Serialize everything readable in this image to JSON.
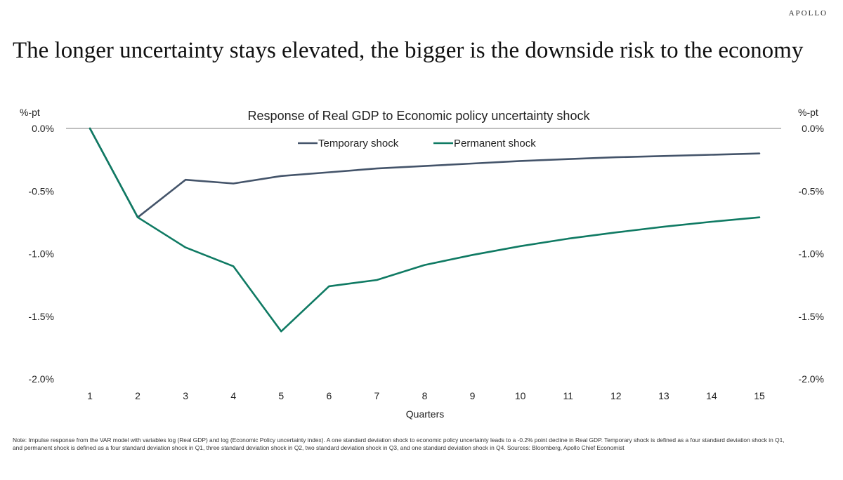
{
  "brand": "APOLLO",
  "headline": "The longer uncertainty stays elevated, the bigger is the downside risk to the economy",
  "note": "Note: Impulse response from the VAR model with variables log (Real GDP) and log (Economic Policy uncertainty index). A one standard deviation shock to economic policy uncertainty leads to a -0.2% point decline in Real GDP. Temporary shock is defined as a four standard deviation shock in Q1, and permanent shock is defined as a four standard deviation shock in Q1, three standard deviation shock in Q2, two standard deviation shock in Q3, and one standard deviation shock in Q4. Sources: Bloomberg, Apollo Chief Economist",
  "chart_data": {
    "type": "line",
    "title": "Response of Real GDP to Economic policy uncertainty shock",
    "xlabel": "Quarters",
    "ylabel_left": "%-pt",
    "ylabel_right": "%-pt",
    "ylim": [
      -2.0,
      0.0
    ],
    "yticks": [
      0.0,
      -0.5,
      -1.0,
      -1.5,
      -2.0
    ],
    "ytick_labels": [
      "0.0%",
      "-0.5%",
      "-1.0%",
      "-1.5%",
      "-2.0%"
    ],
    "x": [
      1,
      2,
      3,
      4,
      5,
      6,
      7,
      8,
      9,
      10,
      11,
      12,
      13,
      14,
      15
    ],
    "x_labels": [
      "1",
      "2",
      "3",
      "4",
      "5",
      "6",
      "7",
      "8",
      "9",
      "10",
      "11",
      "12",
      "13",
      "14",
      "15"
    ],
    "legend_position": "top-center",
    "grid": false,
    "series": [
      {
        "name": "Temporary shock",
        "color": "#44546a",
        "values": [
          0.0,
          -0.71,
          -0.41,
          -0.44,
          -0.38,
          -0.35,
          -0.32,
          -0.3,
          -0.28,
          -0.26,
          -0.245,
          -0.23,
          -0.22,
          -0.21,
          -0.2
        ]
      },
      {
        "name": "Permanent shock",
        "color": "#0f7a63",
        "values": [
          0.0,
          -0.71,
          -0.95,
          -1.1,
          -1.62,
          -1.26,
          -1.21,
          -1.09,
          -1.01,
          -0.94,
          -0.88,
          -0.83,
          -0.785,
          -0.745,
          -0.71
        ]
      }
    ]
  }
}
